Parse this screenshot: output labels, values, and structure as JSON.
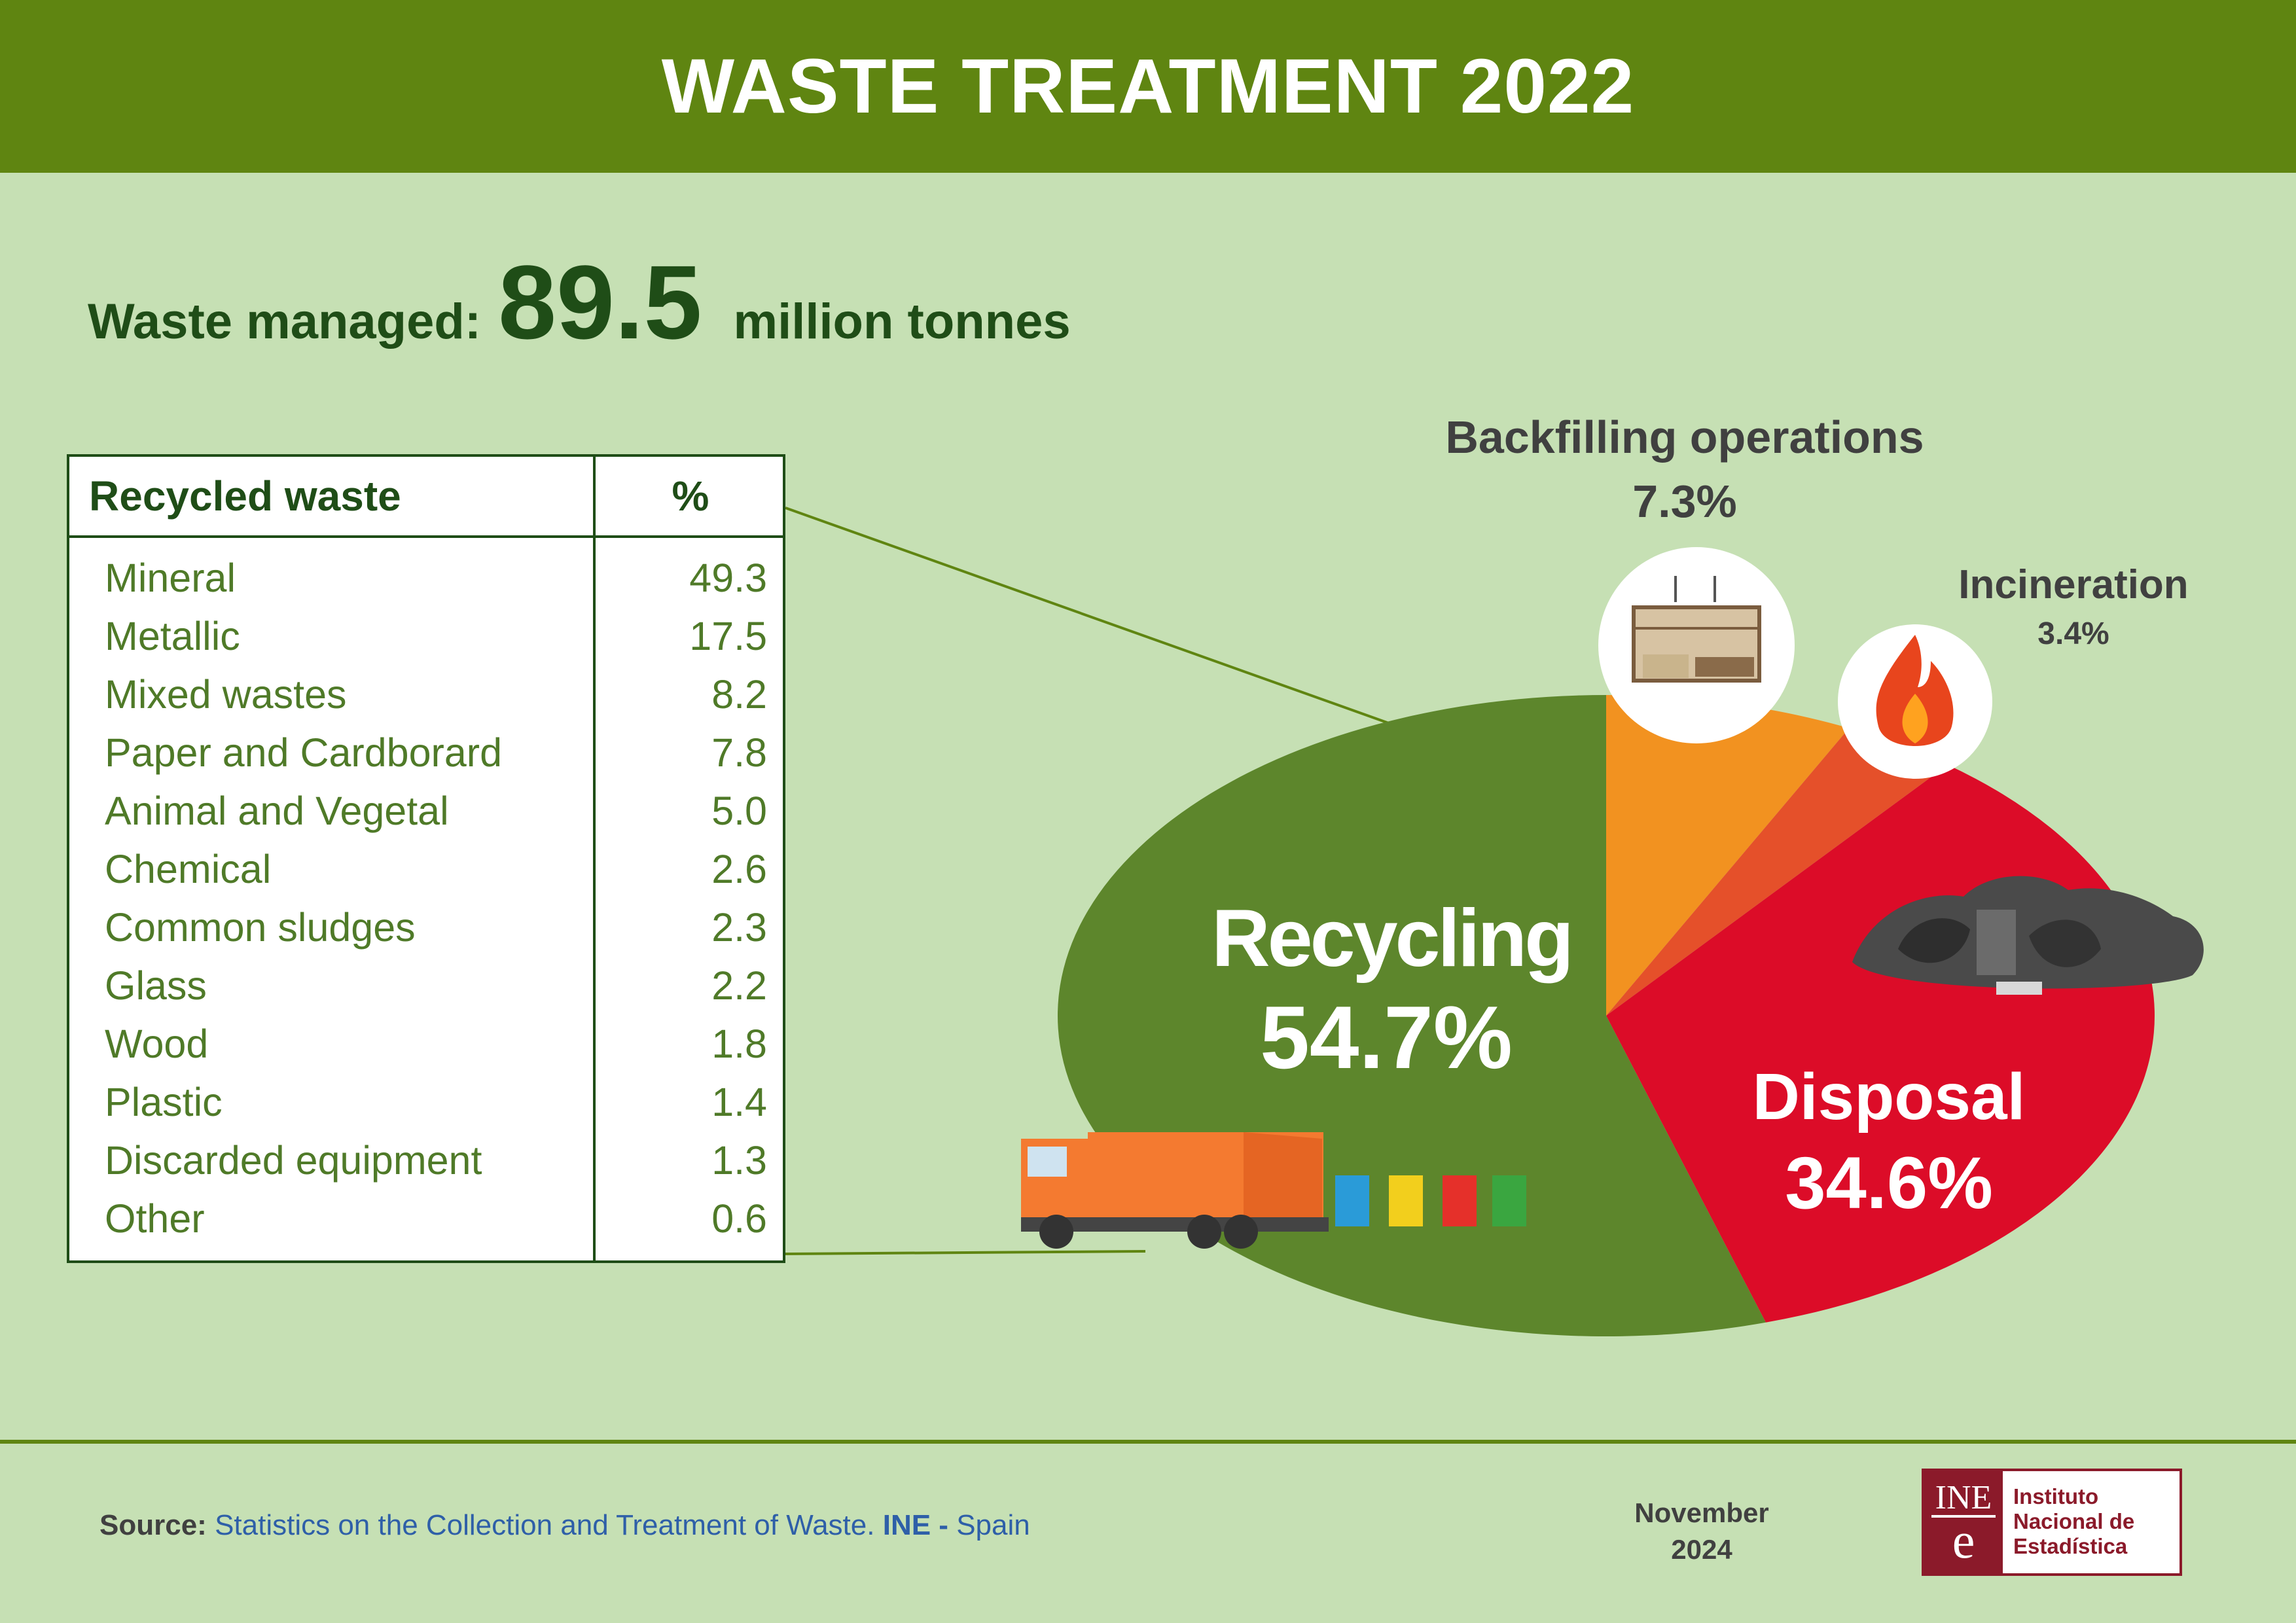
{
  "title": "WASTE TREATMENT 2022",
  "managed": {
    "label": "Waste managed:",
    "value": "89.5",
    "unit": "million tonnes"
  },
  "table": {
    "header_name": "Recycled waste",
    "header_pct": "%",
    "rows": [
      {
        "name": "Mineral",
        "value": "49.3"
      },
      {
        "name": "Metallic",
        "value": "17.5"
      },
      {
        "name": "Mixed wastes",
        "value": "8.2"
      },
      {
        "name": "Paper and Cardborard",
        "value": "7.8"
      },
      {
        "name": "Animal and Vegetal",
        "value": "5.0"
      },
      {
        "name": "Chemical",
        "value": "2.6"
      },
      {
        "name": "Common sludges",
        "value": "2.3"
      },
      {
        "name": "Glass",
        "value": "2.2"
      },
      {
        "name": "Wood",
        "value": "1.8"
      },
      {
        "name": "Plastic",
        "value": "1.4"
      },
      {
        "name": "Discarded equipment",
        "value": "1.3"
      },
      {
        "name": "Other",
        "value": "0.6"
      }
    ]
  },
  "chart_data": {
    "type": "pie",
    "categories": [
      "Recycling",
      "Backfilling operations",
      "Incineration",
      "Disposal"
    ],
    "values": [
      54.7,
      7.3,
      3.4,
      34.6
    ],
    "labels": {
      "recycling": {
        "name": "Recycling",
        "pct": "54.7%"
      },
      "backfilling": {
        "name": "Backfilling operations",
        "pct": "7.3%"
      },
      "incineration": {
        "name": "Incineration",
        "pct": "3.4%"
      },
      "disposal": {
        "name": "Disposal",
        "pct": "34.6%"
      }
    },
    "colors": [
      "#5d862c",
      "#f29220",
      "#e5502a",
      "#dc0c28"
    ]
  },
  "footer": {
    "source_label": "Source:",
    "source_text": "Statistics on the Collection and Treatment of Waste.",
    "source_org": "INE -",
    "source_country": "Spain",
    "date_month": "November",
    "date_year": "2024"
  },
  "logo": {
    "mark_top": "INE",
    "mark_bottom": "e",
    "line1": "Instituto",
    "line2": "Nacional de",
    "line3": "Estadística"
  }
}
